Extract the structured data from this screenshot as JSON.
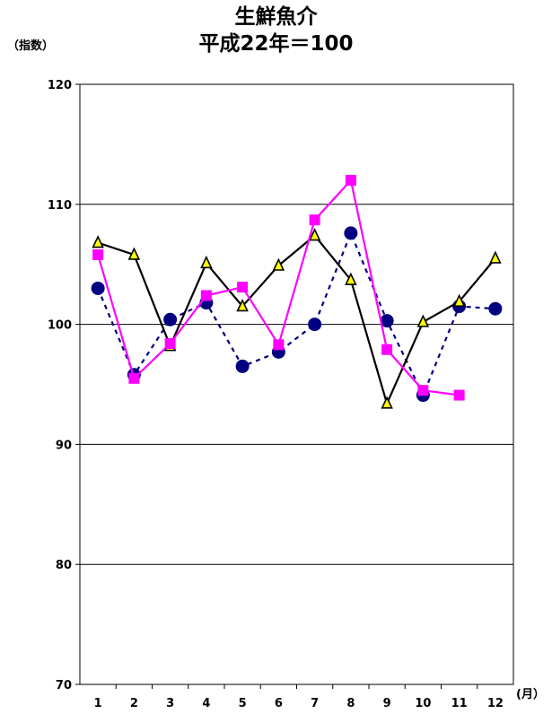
{
  "chart_data": {
    "type": "line",
    "title": "生鮮魚介",
    "subtitle": "平成22年＝100",
    "ylabel": "（指数）",
    "xlabel": "(月）",
    "ylim": [
      70,
      120
    ],
    "yticks": [
      "70",
      "80",
      "90",
      "100",
      "110",
      "120"
    ],
    "categories": [
      "1",
      "2",
      "3",
      "4",
      "5",
      "6",
      "7",
      "8",
      "9",
      "10",
      "11",
      "12"
    ],
    "grid": true,
    "series": [
      {
        "marker": "circle",
        "color": "#000080",
        "dash": true,
        "values": [
          103.0,
          95.8,
          100.4,
          101.8,
          96.5,
          97.7,
          100.0,
          107.6,
          100.3,
          94.1,
          101.5,
          101.3
        ]
      },
      {
        "marker": "triangle",
        "color": "#000000",
        "marker_fill": "#FFFF00",
        "dash": false,
        "values": [
          106.8,
          105.8,
          98.2,
          105.1,
          101.5,
          104.9,
          107.4,
          103.7,
          93.4,
          100.2,
          101.9,
          105.5
        ]
      },
      {
        "marker": "square",
        "color": "#FF00FF",
        "dash": false,
        "values": [
          105.8,
          95.5,
          98.4,
          102.4,
          103.1,
          98.3,
          108.7,
          112.0,
          97.9,
          94.5,
          94.1,
          null
        ]
      }
    ]
  }
}
